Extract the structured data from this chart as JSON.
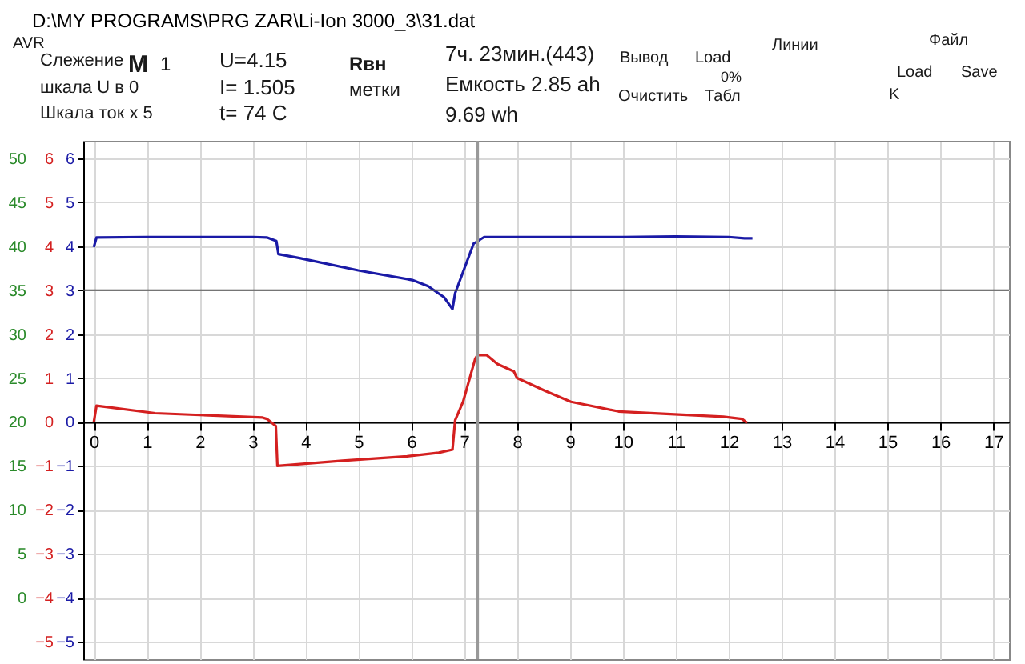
{
  "chart_data": {
    "type": "line",
    "title": "D:\\MY PROGRAMS\\PRG ZAR\\Li-Ion 3000_3\\31.dat",
    "annotations": [
      "AVR",
      "Слежение",
      "шкала U  в 0",
      "Шкала ток x 5",
      "M",
      "1",
      "U=4.15",
      "I= 1.505",
      "t= 74 C",
      "Rвн",
      "метки",
      "7ч. 23мин.(443)",
      "Емкость 2.85 ah",
      "9.69 wh",
      "Вывод",
      "Load",
      "0%",
      "Очистить",
      "Табл",
      "Линии",
      "Файл",
      "Load",
      "Save",
      "K"
    ],
    "xlim": [
      -0.2,
      17.3
    ],
    "xticks": [
      0,
      1,
      2,
      3,
      4,
      5,
      6,
      7,
      8,
      9,
      10,
      11,
      12,
      13,
      14,
      15,
      16,
      17
    ],
    "ylim": [
      -5.4,
      6.4
    ],
    "yticks": [
      -5,
      -4,
      -3,
      -2,
      -1,
      0,
      1,
      2,
      3,
      4,
      5,
      6
    ],
    "y2lim": [
      -5.4,
      6.4
    ],
    "y2ticks": [
      -5,
      -4,
      -3,
      -2,
      -1,
      0,
      1,
      2,
      3,
      4,
      5,
      6
    ],
    "y3lim": [
      -7,
      52
    ],
    "y3ticks": [
      0,
      5,
      10,
      15,
      20,
      25,
      30,
      35,
      40,
      45,
      50
    ],
    "grid": true,
    "ref_lines": [
      {
        "axis": "x",
        "value": 7.25,
        "color": "#999999"
      },
      {
        "axis": "y",
        "value": 3,
        "color": "#555555"
      }
    ],
    "series": [
      {
        "color": "#1a1aa6",
        "axis": "y",
        "x": [
          0,
          0.05,
          1,
          2,
          3,
          3.27,
          3.45,
          3.49,
          3.89,
          5.0,
          6.02,
          6.32,
          6.62,
          6.78,
          6.83,
          7.18,
          7.38,
          8,
          9,
          10,
          11,
          12,
          12.3,
          12.45
        ],
        "values": [
          3.98,
          4.2,
          4.21,
          4.21,
          4.21,
          4.2,
          4.12,
          3.82,
          3.73,
          3.45,
          3.23,
          3.09,
          2.84,
          2.57,
          2.93,
          4.06,
          4.21,
          4.21,
          4.21,
          4.21,
          4.22,
          4.21,
          4.18,
          4.18
        ]
      },
      {
        "color": "#d42020",
        "axis": "y2",
        "x": [
          0,
          0.05,
          1.16,
          3.19,
          3.27,
          3.44,
          3.47,
          4.7,
          5.92,
          6.52,
          6.78,
          6.83,
          6.98,
          7.21,
          7.25,
          7.43,
          7.63,
          7.94,
          8.0,
          8.53,
          9.02,
          9.92,
          10.9,
          11.9,
          12.25,
          12.35
        ],
        "values": [
          0,
          0.37,
          0.2,
          0.1,
          0.07,
          -0.09,
          -1.0,
          -0.88,
          -0.78,
          -0.7,
          -0.63,
          0.04,
          0.46,
          1.44,
          1.52,
          1.52,
          1.32,
          1.15,
          1.0,
          0.71,
          0.46,
          0.24,
          0.18,
          0.12,
          0.07,
          -0.02
        ]
      }
    ]
  }
}
